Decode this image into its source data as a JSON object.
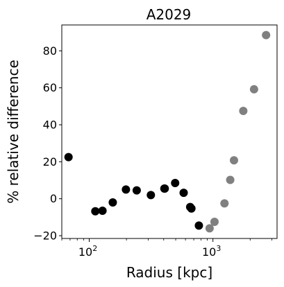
{
  "chart_data": {
    "type": "scatter",
    "title": "A2029",
    "xlabel": "Radius [kpc]",
    "ylabel": "% relative difference",
    "xscale": "log",
    "xlim": [
      60,
      3300
    ],
    "ylim": [
      -21.5,
      94
    ],
    "xticks": [
      {
        "value": 100,
        "base": "10",
        "exp": "2"
      },
      {
        "value": 1000,
        "base": "10",
        "exp": "3"
      }
    ],
    "yticks": [
      -20,
      0,
      20,
      40,
      60,
      80
    ],
    "grid": false,
    "series": [
      {
        "color": "#000000",
        "points": [
          [
            68,
            22.5
          ],
          [
            112,
            -6.8
          ],
          [
            128,
            -6.5
          ],
          [
            155,
            -2
          ],
          [
            198,
            5
          ],
          [
            242,
            4.5
          ],
          [
            315,
            2
          ],
          [
            405,
            5.5
          ],
          [
            408,
            5.5
          ],
          [
            495,
            8.5
          ],
          [
            580,
            3.2
          ],
          [
            655,
            -4.5
          ],
          [
            670,
            -5.3
          ],
          [
            770,
            -14.5
          ]
        ]
      },
      {
        "color": "#808080",
        "points": [
          [
            940,
            -16
          ],
          [
            1030,
            -12.5
          ],
          [
            1240,
            -2.5
          ],
          [
            1380,
            10.2
          ],
          [
            1480,
            20.8
          ],
          [
            1760,
            47.5
          ],
          [
            2150,
            59.2
          ],
          [
            2690,
            88.5
          ]
        ]
      }
    ]
  }
}
